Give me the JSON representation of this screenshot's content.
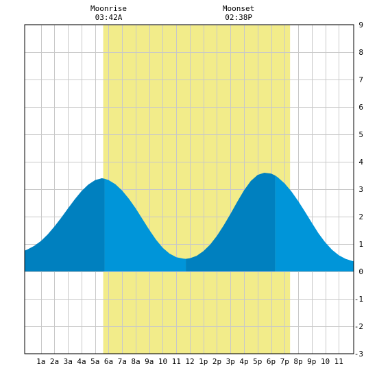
{
  "chart_data": {
    "type": "area",
    "title": "",
    "xlabel": "",
    "ylabel": "",
    "x_range_hours": [
      -0.2,
      24.1
    ],
    "ylim": [
      -3,
      9
    ],
    "y_ticks": [
      -3,
      -2,
      -1,
      0,
      1,
      2,
      3,
      4,
      5,
      6,
      7,
      8,
      9
    ],
    "x_tick_hours": [
      1,
      2,
      3,
      4,
      5,
      6,
      7,
      8,
      9,
      10,
      11,
      12,
      13,
      14,
      15,
      16,
      17,
      18,
      19,
      20,
      21,
      22,
      23
    ],
    "x_tick_labels": [
      "1a",
      "2a",
      "3a",
      "4a",
      "5a",
      "6a",
      "7a",
      "8a",
      "9a",
      "10",
      "11",
      "12",
      "1p",
      "2p",
      "3p",
      "4p",
      "5p",
      "6p",
      "7p",
      "8p",
      "9p",
      "10",
      "11"
    ],
    "grid": true,
    "daylight_band": {
      "start": 5.6,
      "end": 19.4,
      "color": "#f2ec8a"
    },
    "series": [
      {
        "x": [
          -0.2,
          0,
          0.5,
          1,
          1.5,
          2,
          2.5,
          3,
          3.5,
          4,
          4.5,
          5,
          5.5,
          5.7,
          6,
          6.5,
          7,
          7.5,
          8,
          8.5,
          9,
          9.5,
          10,
          10.5,
          11,
          11.5,
          11.7,
          12,
          12.5,
          13,
          13.5,
          14,
          14.5,
          15,
          15.5,
          16,
          16.5,
          17,
          17.5,
          18,
          18.3,
          18.5,
          19,
          19.5,
          20,
          20.5,
          21,
          21.5,
          22,
          22.5,
          23,
          23.5,
          24,
          24.1
        ],
        "values": [
          0.76,
          0.8,
          0.93,
          1.11,
          1.35,
          1.64,
          1.96,
          2.3,
          2.63,
          2.93,
          3.17,
          3.33,
          3.4,
          3.38,
          3.33,
          3.18,
          2.95,
          2.65,
          2.3,
          1.91,
          1.52,
          1.16,
          0.86,
          0.65,
          0.52,
          0.47,
          0.46,
          0.48,
          0.57,
          0.74,
          0.98,
          1.3,
          1.68,
          2.1,
          2.54,
          2.96,
          3.3,
          3.52,
          3.6,
          3.57,
          3.5,
          3.43,
          3.21,
          2.92,
          2.57,
          2.18,
          1.78,
          1.39,
          1.06,
          0.79,
          0.59,
          0.46,
          0.38,
          0.37
        ]
      }
    ],
    "tide_colors": {
      "falling": "#0095d9",
      "rising": "#0080bf"
    },
    "shade_segments": [
      {
        "start": -0.2,
        "end": 5.7,
        "shade": "rising"
      },
      {
        "start": 5.7,
        "end": 11.7,
        "shade": "falling"
      },
      {
        "start": 11.7,
        "end": 18.3,
        "shade": "rising"
      },
      {
        "start": 18.3,
        "end": 24.1,
        "shade": "falling"
      }
    ],
    "annotations": [
      {
        "label": "Moonrise",
        "time": "03:42A",
        "hour": 6.0
      },
      {
        "label": "Moonset",
        "time": "02:38P",
        "hour": 15.6
      }
    ]
  }
}
